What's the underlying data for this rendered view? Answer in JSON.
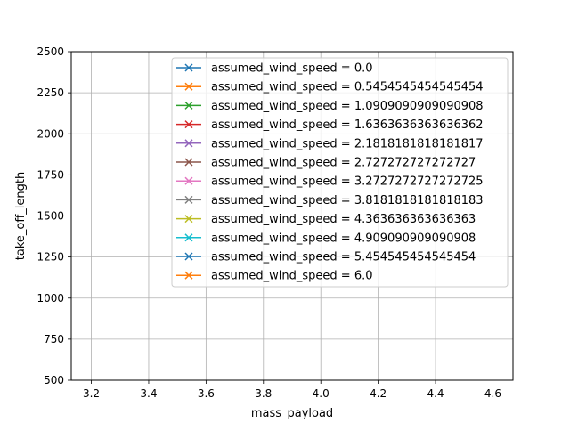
{
  "chart_data": {
    "type": "line",
    "title": "",
    "xlabel": "mass_payload",
    "ylabel": "take_off_length",
    "xlim": [
      3.13,
      4.67
    ],
    "ylim": [
      500,
      2500
    ],
    "xticks": [
      3.2,
      3.4,
      3.6,
      3.8,
      4.0,
      4.2,
      4.4,
      4.6
    ],
    "xtick_labels": [
      "3.2",
      "3.4",
      "3.6",
      "3.8",
      "4.0",
      "4.2",
      "4.4",
      "4.6"
    ],
    "yticks": [
      500,
      750,
      1000,
      1250,
      1500,
      1750,
      2000,
      2250,
      2500
    ],
    "ytick_labels": [
      "500",
      "750",
      "1000",
      "1250",
      "1500",
      "1750",
      "2000",
      "2250",
      "2500"
    ],
    "grid": true,
    "legend_position": "top-right",
    "marker": "x",
    "series": [
      {
        "name": "assumed_wind_speed = 0.0",
        "color": "#1f77b4",
        "x": [],
        "y": []
      },
      {
        "name": "assumed_wind_speed = 0.5454545454545454",
        "color": "#ff7f0e",
        "x": [],
        "y": []
      },
      {
        "name": "assumed_wind_speed = 1.0909090909090908",
        "color": "#2ca02c",
        "x": [],
        "y": []
      },
      {
        "name": "assumed_wind_speed = 1.6363636363636362",
        "color": "#d62728",
        "x": [],
        "y": []
      },
      {
        "name": "assumed_wind_speed = 2.1818181818181817",
        "color": "#9467bd",
        "x": [],
        "y": []
      },
      {
        "name": "assumed_wind_speed = 2.727272727272727",
        "color": "#8c564b",
        "x": [],
        "y": []
      },
      {
        "name": "assumed_wind_speed = 3.2727272727272725",
        "color": "#e377c2",
        "x": [],
        "y": []
      },
      {
        "name": "assumed_wind_speed = 3.8181818181818183",
        "color": "#7f7f7f",
        "x": [],
        "y": []
      },
      {
        "name": "assumed_wind_speed = 4.363636363636363",
        "color": "#bcbd22",
        "x": [],
        "y": []
      },
      {
        "name": "assumed_wind_speed = 4.909090909090908",
        "color": "#17becf",
        "x": [],
        "y": []
      },
      {
        "name": "assumed_wind_speed = 5.454545454545454",
        "color": "#1f77b4",
        "x": [],
        "y": []
      },
      {
        "name": "assumed_wind_speed = 6.0",
        "color": "#ff7f0e",
        "x": [],
        "y": []
      }
    ]
  }
}
